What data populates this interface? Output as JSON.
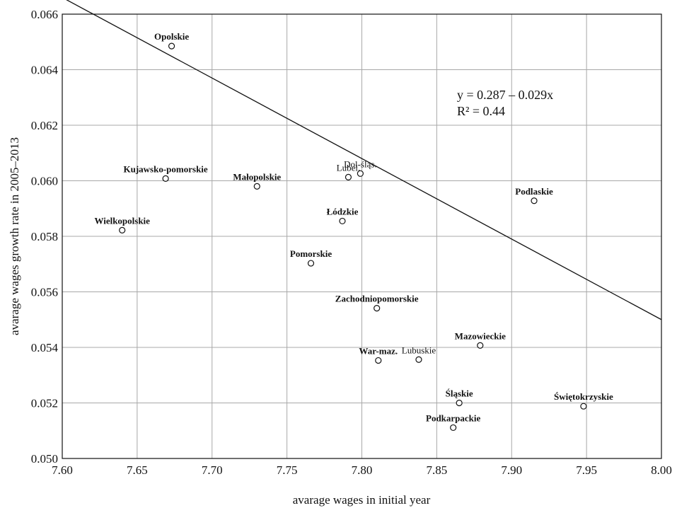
{
  "chart_data": {
    "type": "scatter",
    "xlabel": "avarage wages in initial year",
    "ylabel": "avarage wages growth rate in 2005–2013",
    "xlim": [
      7.6,
      8.0
    ],
    "ylim": [
      0.05,
      0.066
    ],
    "x_ticks": [
      "7.60",
      "7.65",
      "7.70",
      "7.75",
      "7.80",
      "7.85",
      "7.90",
      "7.95",
      "8.00"
    ],
    "y_ticks": [
      "0.050",
      "0.052",
      "0.054",
      "0.056",
      "0.058",
      "0.060",
      "0.062",
      "0.064",
      "0.066"
    ],
    "grid": true,
    "regression": {
      "intercept": 0.287,
      "slope": -0.029
    },
    "equation_line1": "y = 0.287 – 0.029x",
    "equation_line2": "R² = 0.44",
    "points": [
      {
        "label": "Opolskie",
        "x": 7.673,
        "y": 0.06485,
        "bold": true
      },
      {
        "label": "Kujawsko-pomorskie",
        "x": 7.669,
        "y": 0.06008,
        "bold": true
      },
      {
        "label": "Wielkopolskie",
        "x": 7.64,
        "y": 0.05822,
        "bold": true
      },
      {
        "label": "Małopolskie",
        "x": 7.73,
        "y": 0.0598,
        "bold": true
      },
      {
        "label": "Lubel.",
        "x": 7.791,
        "y": 0.06013,
        "bold": false
      },
      {
        "label": "Dol-śląs.",
        "x": 7.799,
        "y": 0.06026,
        "bold": false
      },
      {
        "label": "Łódzkie",
        "x": 7.787,
        "y": 0.05855,
        "bold": true
      },
      {
        "label": "Pomorskie",
        "x": 7.766,
        "y": 0.05703,
        "bold": true
      },
      {
        "label": "Podlaskie",
        "x": 7.915,
        "y": 0.05928,
        "bold": true
      },
      {
        "label": "Zachodniopomorskie",
        "x": 7.81,
        "y": 0.05541,
        "bold": true
      },
      {
        "label": "Mazowieckie",
        "x": 7.879,
        "y": 0.05407,
        "bold": true
      },
      {
        "label": "War-maz.",
        "x": 7.811,
        "y": 0.05353,
        "bold": true
      },
      {
        "label": "Lubuskie",
        "x": 7.838,
        "y": 0.05356,
        "bold": false
      },
      {
        "label": "Śląskie",
        "x": 7.865,
        "y": 0.052,
        "bold": true
      },
      {
        "label": "Świętokrzyskie",
        "x": 7.948,
        "y": 0.05188,
        "bold": true
      },
      {
        "label": "Podkarpackie",
        "x": 7.861,
        "y": 0.05111,
        "bold": true
      }
    ]
  }
}
